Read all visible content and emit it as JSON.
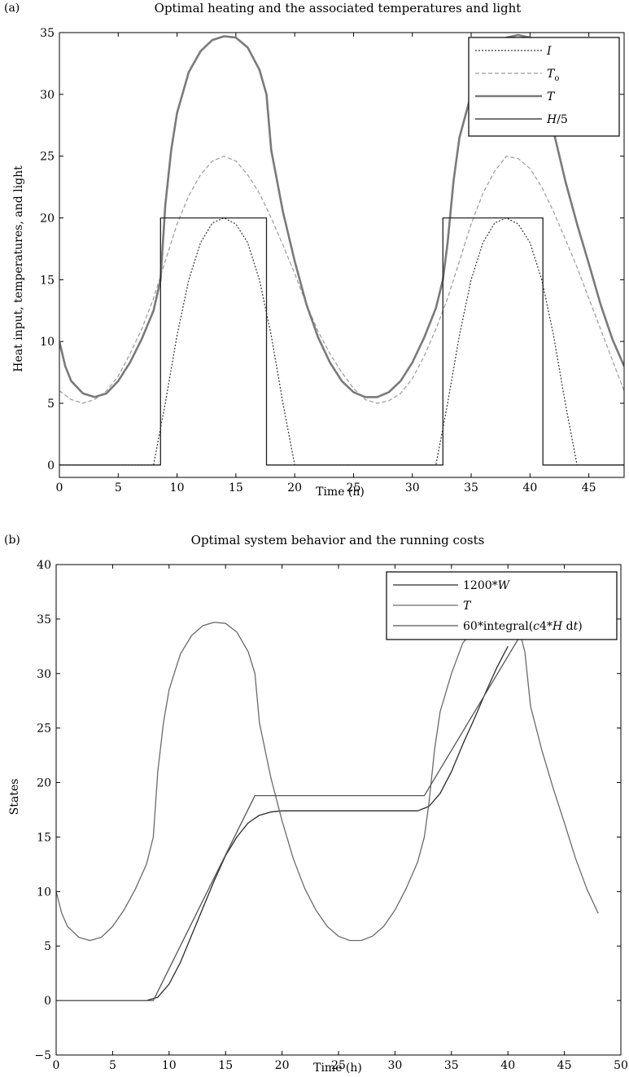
{
  "chart_data": [
    {
      "panel_label": "(a)",
      "type": "line",
      "title": "Optimal heating and the associated temperatures and light",
      "xlabel": "Time (h)",
      "ylabel": "Heat input, temperatures, and light",
      "xlim": [
        0,
        48
      ],
      "ylim": [
        -1,
        35
      ],
      "xticks": [
        0,
        5,
        10,
        15,
        20,
        25,
        30,
        35,
        40,
        45
      ],
      "yticks": [
        0,
        5,
        10,
        15,
        20,
        25,
        30,
        35
      ],
      "grid": false,
      "legend_position": "top-right",
      "series": [
        {
          "name": "I",
          "name_parts": [
            {
              "t": "I",
              "i": true
            }
          ],
          "style": "dotted",
          "color": "#333333",
          "points": [
            [
              0,
              0
            ],
            [
              8,
              0
            ],
            [
              9,
              5
            ],
            [
              10,
              10.5
            ],
            [
              11,
              15
            ],
            [
              12,
              18
            ],
            [
              13,
              19.6
            ],
            [
              14,
              20
            ],
            [
              15,
              19.5
            ],
            [
              16,
              18
            ],
            [
              17,
              15
            ],
            [
              18,
              10.5
            ],
            [
              19,
              5
            ],
            [
              20,
              0
            ],
            [
              32,
              0
            ],
            [
              33,
              5
            ],
            [
              34,
              10.5
            ],
            [
              35,
              15
            ],
            [
              36,
              18
            ],
            [
              37,
              19.6
            ],
            [
              38,
              20
            ],
            [
              39,
              19.5
            ],
            [
              40,
              18
            ],
            [
              41,
              15
            ],
            [
              42,
              10.5
            ],
            [
              43,
              5
            ],
            [
              44,
              0
            ],
            [
              48,
              0
            ]
          ]
        },
        {
          "name": "To",
          "name_parts": [
            {
              "t": "T",
              "i": true
            },
            {
              "t": "o",
              "sub": true
            }
          ],
          "style": "dashed",
          "color": "#9a9a9a",
          "points": [
            [
              0,
              6
            ],
            [
              1,
              5.3
            ],
            [
              2,
              5
            ],
            [
              3,
              5.3
            ],
            [
              4,
              6
            ],
            [
              5,
              7.2
            ],
            [
              6,
              9
            ],
            [
              7,
              11
            ],
            [
              8,
              13.5
            ],
            [
              9,
              16.5
            ],
            [
              10,
              19.5
            ],
            [
              11,
              21.8
            ],
            [
              12,
              23.5
            ],
            [
              13,
              24.6
            ],
            [
              14,
              25
            ],
            [
              15,
              24.6
            ],
            [
              16,
              23.5
            ],
            [
              17,
              22
            ],
            [
              18,
              20
            ],
            [
              19,
              17.8
            ],
            [
              20,
              15.5
            ],
            [
              21,
              13
            ],
            [
              22,
              10.8
            ],
            [
              23,
              9
            ],
            [
              24,
              7.5
            ],
            [
              25,
              6.2
            ],
            [
              26,
              5.3
            ],
            [
              27,
              5
            ],
            [
              28,
              5.2
            ],
            [
              29,
              5.8
            ],
            [
              30,
              7
            ],
            [
              31,
              8.8
            ],
            [
              32,
              11
            ],
            [
              33,
              13.5
            ],
            [
              34,
              16.5
            ],
            [
              35,
              19.5
            ],
            [
              36,
              22
            ],
            [
              37,
              23.8
            ],
            [
              38,
              25
            ],
            [
              39,
              24.8
            ],
            [
              40,
              24
            ],
            [
              41,
              22.5
            ],
            [
              42,
              20.5
            ],
            [
              43,
              18.3
            ],
            [
              44,
              16
            ],
            [
              45,
              13.5
            ],
            [
              46,
              11
            ],
            [
              47,
              8.5
            ],
            [
              48,
              6
            ]
          ]
        },
        {
          "name": "T",
          "name_parts": [
            {
              "t": "T",
              "i": true
            }
          ],
          "style": "thick",
          "color": "#7a7a7a",
          "points": [
            [
              0,
              10
            ],
            [
              0.5,
              8
            ],
            [
              1,
              6.8
            ],
            [
              2,
              5.8
            ],
            [
              3,
              5.5
            ],
            [
              4,
              5.8
            ],
            [
              5,
              6.8
            ],
            [
              6,
              8.3
            ],
            [
              7,
              10.2
            ],
            [
              8,
              12.5
            ],
            [
              8.6,
              15
            ],
            [
              9,
              21
            ],
            [
              9.5,
              25.5
            ],
            [
              10,
              28.5
            ],
            [
              11,
              31.8
            ],
            [
              12,
              33.5
            ],
            [
              13,
              34.4
            ],
            [
              14,
              34.7
            ],
            [
              15,
              34.6
            ],
            [
              16,
              33.8
            ],
            [
              17,
              32
            ],
            [
              17.6,
              30
            ],
            [
              18,
              25.5
            ],
            [
              19,
              20.5
            ],
            [
              20,
              16.5
            ],
            [
              21,
              13
            ],
            [
              22,
              10.3
            ],
            [
              23,
              8.3
            ],
            [
              24,
              6.8
            ],
            [
              25,
              5.9
            ],
            [
              26,
              5.5
            ],
            [
              27,
              5.5
            ],
            [
              28,
              5.9
            ],
            [
              29,
              6.8
            ],
            [
              30,
              8.3
            ],
            [
              31,
              10.3
            ],
            [
              32,
              12.7
            ],
            [
              32.6,
              15
            ],
            [
              33,
              18
            ],
            [
              33.5,
              23
            ],
            [
              34,
              26.5
            ],
            [
              35,
              30
            ],
            [
              36,
              32.8
            ],
            [
              37,
              34
            ],
            [
              38,
              34.6
            ],
            [
              39,
              34.8
            ],
            [
              40,
              34.6
            ],
            [
              41,
              34
            ],
            [
              41.5,
              32
            ],
            [
              42,
              27
            ],
            [
              43,
              23
            ],
            [
              44,
              19.5
            ],
            [
              45,
              16.3
            ],
            [
              46,
              13
            ],
            [
              47,
              10.2
            ],
            [
              48,
              8
            ]
          ]
        },
        {
          "name": "H/5",
          "name_parts": [
            {
              "t": "H",
              "i": true
            },
            {
              "t": "/5"
            }
          ],
          "style": "solid",
          "color": "#222222",
          "points": [
            [
              0,
              0
            ],
            [
              8.6,
              0
            ],
            [
              8.6,
              20
            ],
            [
              17.6,
              20
            ],
            [
              17.6,
              0
            ],
            [
              32.6,
              0
            ],
            [
              32.6,
              20
            ],
            [
              41.1,
              20
            ],
            [
              41.1,
              0
            ],
            [
              48,
              0
            ]
          ]
        }
      ]
    },
    {
      "panel_label": "(b)",
      "type": "line",
      "title": "Optimal system behavior and the running costs",
      "xlabel": "Time (h)",
      "ylabel": "States",
      "xlim": [
        0,
        50
      ],
      "ylim": [
        -5,
        40
      ],
      "xticks": [
        0,
        5,
        10,
        15,
        20,
        25,
        30,
        35,
        40,
        45,
        50
      ],
      "yticks": [
        -5,
        0,
        5,
        10,
        15,
        20,
        25,
        30,
        35,
        40
      ],
      "grid": false,
      "legend_position": "top-right",
      "series": [
        {
          "name": "1200*W",
          "name_parts": [
            {
              "t": "1200*"
            },
            {
              "t": "W",
              "i": true
            }
          ],
          "style": "solid",
          "color": "#2a2a2a",
          "points": [
            [
              0,
              0
            ],
            [
              8,
              0
            ],
            [
              9,
              0.3
            ],
            [
              10,
              1.5
            ],
            [
              11,
              3.5
            ],
            [
              12,
              6
            ],
            [
              13,
              8.5
            ],
            [
              14,
              11
            ],
            [
              15,
              13.3
            ],
            [
              16,
              15
            ],
            [
              17,
              16.3
            ],
            [
              18,
              17
            ],
            [
              19,
              17.3
            ],
            [
              20,
              17.4
            ],
            [
              32,
              17.4
            ],
            [
              33,
              17.8
            ],
            [
              34,
              19
            ],
            [
              35,
              21
            ],
            [
              36,
              23.5
            ],
            [
              37,
              25.8
            ],
            [
              38,
              28.2
            ],
            [
              39,
              30.5
            ],
            [
              40,
              32.5
            ]
          ]
        },
        {
          "name": "T",
          "name_parts": [
            {
              "t": "T",
              "i": true
            }
          ],
          "style": "solid",
          "color": "#6a6a6a",
          "points": [
            [
              0,
              10
            ],
            [
              0.5,
              8
            ],
            [
              1,
              6.8
            ],
            [
              2,
              5.8
            ],
            [
              3,
              5.5
            ],
            [
              4,
              5.8
            ],
            [
              5,
              6.8
            ],
            [
              6,
              8.3
            ],
            [
              7,
              10.2
            ],
            [
              8,
              12.5
            ],
            [
              8.6,
              15
            ],
            [
              9,
              21
            ],
            [
              9.5,
              25.5
            ],
            [
              10,
              28.5
            ],
            [
              11,
              31.8
            ],
            [
              12,
              33.5
            ],
            [
              13,
              34.4
            ],
            [
              14,
              34.7
            ],
            [
              15,
              34.6
            ],
            [
              16,
              33.8
            ],
            [
              17,
              32
            ],
            [
              17.6,
              30
            ],
            [
              18,
              25.5
            ],
            [
              19,
              20.5
            ],
            [
              20,
              16.5
            ],
            [
              21,
              13
            ],
            [
              22,
              10.3
            ],
            [
              23,
              8.3
            ],
            [
              24,
              6.8
            ],
            [
              25,
              5.9
            ],
            [
              26,
              5.5
            ],
            [
              27,
              5.5
            ],
            [
              28,
              5.9
            ],
            [
              29,
              6.8
            ],
            [
              30,
              8.3
            ],
            [
              31,
              10.3
            ],
            [
              32,
              12.7
            ],
            [
              32.6,
              15
            ],
            [
              33,
              18
            ],
            [
              33.5,
              23
            ],
            [
              34,
              26.5
            ],
            [
              35,
              30
            ],
            [
              36,
              32.8
            ],
            [
              37,
              34
            ],
            [
              38,
              34.6
            ],
            [
              39,
              34.8
            ],
            [
              40,
              34.6
            ],
            [
              41,
              34
            ],
            [
              41.5,
              32
            ],
            [
              42,
              27
            ],
            [
              43,
              23
            ],
            [
              44,
              19.5
            ],
            [
              45,
              16.3
            ],
            [
              46,
              13
            ],
            [
              47,
              10.2
            ],
            [
              48,
              8
            ]
          ]
        },
        {
          "name": "60*integral(c4*H dt)",
          "name_parts": [
            {
              "t": "60*integral("
            },
            {
              "t": "c",
              "i": true
            },
            {
              "t": "4*"
            },
            {
              "t": "H",
              "i": true
            },
            {
              "t": " d"
            },
            {
              "t": "t",
              "i": true
            },
            {
              "t": ")"
            }
          ],
          "style": "solid",
          "color": "#555555",
          "points": [
            [
              0,
              0
            ],
            [
              8.6,
              0
            ],
            [
              17.6,
              18.8
            ],
            [
              32.6,
              18.8
            ],
            [
              41.1,
              33.5
            ]
          ]
        }
      ]
    }
  ]
}
